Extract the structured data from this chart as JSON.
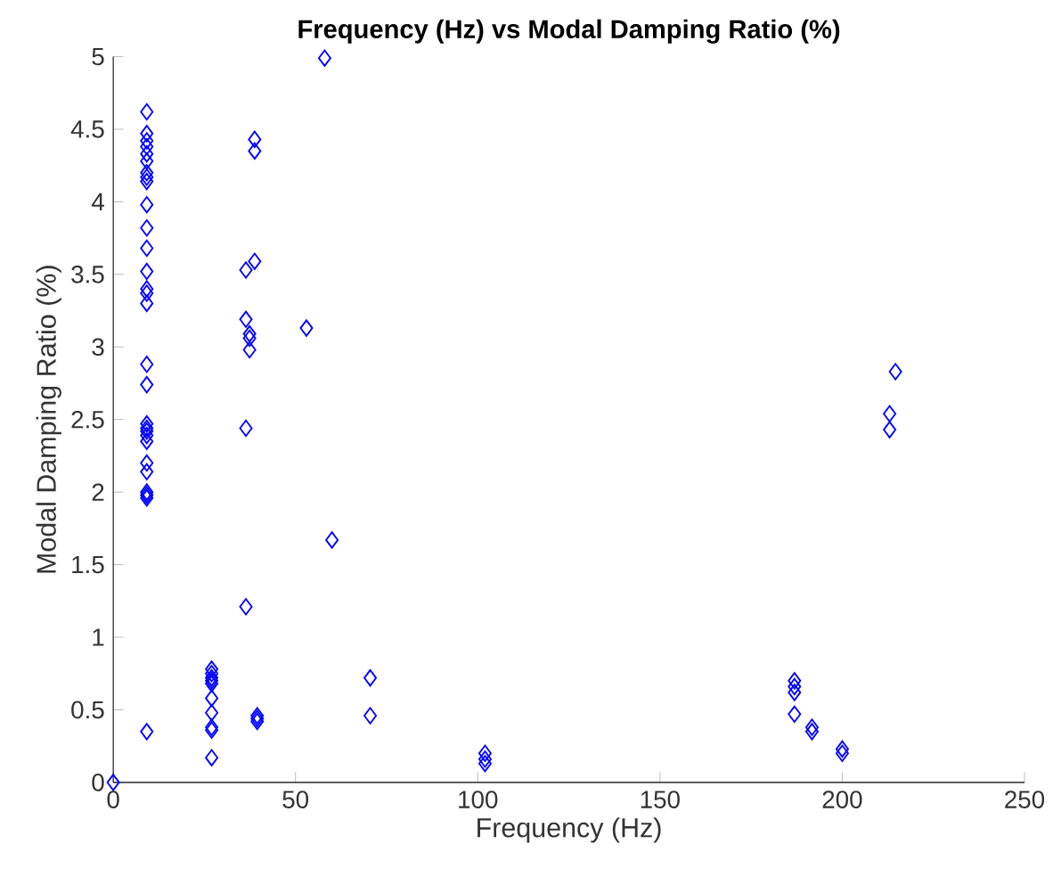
{
  "chart_data": {
    "type": "scatter",
    "title": "Frequency (Hz) vs Modal Damping Ratio (%)",
    "xlabel": "Frequency (Hz)",
    "ylabel": "Modal Damping Ratio (%)",
    "marker": "diamond",
    "xlim": [
      0,
      250
    ],
    "ylim": [
      0,
      5
    ],
    "xticks": [
      0,
      50,
      100,
      150,
      200,
      250
    ],
    "yticks": [
      0,
      0.5,
      1,
      1.5,
      2,
      2.5,
      3,
      3.5,
      4,
      4.5,
      5
    ],
    "series": [
      {
        "color": "#0000ff",
        "x": [
          0,
          9.2,
          9.2,
          9.2,
          9.2,
          9.2,
          9.2,
          9.2,
          9.2,
          9.2,
          9.2,
          9.2,
          9.2,
          9.2,
          9.2,
          9.2,
          9.2,
          9.2,
          9.2,
          9.2,
          9.2,
          9.2,
          9.2,
          9.2,
          9.2,
          9.2,
          9.2,
          9.2,
          9.2,
          9.2,
          27,
          27,
          27,
          27,
          27,
          27,
          27,
          27,
          27,
          27,
          36.4,
          36.4,
          36.4,
          36.4,
          37.4,
          37.4,
          37.4,
          38.8,
          38.8,
          38.8,
          39.5,
          39.5,
          39.5,
          53,
          58,
          60,
          70.5,
          70.5,
          102,
          102,
          102,
          186.9,
          186.9,
          186.9,
          186.9,
          191.7,
          191.7,
          200,
          200,
          214.6,
          213,
          213
        ],
        "values": [
          0,
          4.62,
          4.47,
          4.42,
          4.38,
          4.33,
          4.28,
          4.2,
          4.17,
          4.14,
          3.98,
          3.82,
          3.68,
          3.52,
          3.4,
          3.37,
          3.3,
          2.88,
          2.74,
          2.47,
          2.44,
          2.42,
          2.39,
          2.35,
          2.2,
          2.14,
          2.0,
          1.98,
          1.96,
          0.35,
          0.78,
          0.75,
          0.72,
          0.7,
          0.68,
          0.58,
          0.48,
          0.38,
          0.36,
          0.17,
          3.53,
          3.19,
          2.44,
          1.21,
          3.09,
          3.06,
          2.98,
          4.43,
          4.35,
          3.59,
          0.46,
          0.44,
          0.42,
          3.13,
          4.99,
          1.67,
          0.72,
          0.46,
          0.2,
          0.16,
          0.13,
          0.7,
          0.66,
          0.62,
          0.47,
          0.38,
          0.35,
          0.23,
          0.2,
          2.83,
          2.54,
          2.43
        ]
      }
    ]
  }
}
